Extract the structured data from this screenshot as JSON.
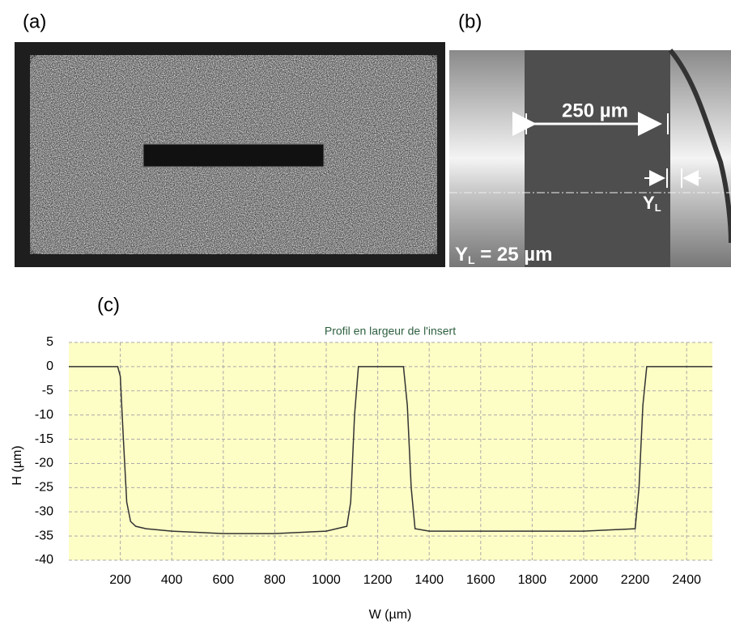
{
  "panels": {
    "a": {
      "label": "(a)"
    },
    "b": {
      "label": "(b)",
      "width_label": "250 µm",
      "yl_symbol": "Y",
      "yl_sub": "L",
      "yl_value_symbol": "Y",
      "yl_value_sub": "L",
      "yl_value_text": " = 25 µm"
    },
    "c": {
      "label": "(c)"
    }
  },
  "chart_data": {
    "type": "line",
    "title": "Profil en largeur de l'insert",
    "x_label": "W (µm)",
    "y_label": "H (µm)",
    "x": [
      0,
      190,
      200,
      212,
      225,
      240,
      260,
      300,
      400,
      600,
      800,
      1000,
      1080,
      1095,
      1110,
      1125,
      1200,
      1300,
      1315,
      1330,
      1345,
      1400,
      1600,
      1800,
      2000,
      2200,
      2215,
      2230,
      2245,
      2300,
      2400,
      2500
    ],
    "values": [
      0,
      0,
      -2,
      -15,
      -28,
      -32,
      -33,
      -33.5,
      -34,
      -34.5,
      -34.5,
      -34,
      -33,
      -28,
      -10,
      0,
      0,
      0,
      -8,
      -25,
      -33.5,
      -34,
      -34,
      -34,
      -34,
      -33.5,
      -25,
      -8,
      0,
      0,
      0,
      0
    ],
    "color": "#333333",
    "background": "#fdfdc6",
    "xlim": [
      0,
      2500
    ],
    "xticks": [
      200,
      400,
      600,
      800,
      1000,
      1200,
      1400,
      1600,
      1800,
      2000,
      2200,
      2400
    ],
    "ylim": [
      -40,
      5
    ],
    "yticks": [
      5,
      0,
      -5,
      -10,
      -15,
      -20,
      -25,
      -30,
      -35,
      -40
    ],
    "grid": true
  }
}
